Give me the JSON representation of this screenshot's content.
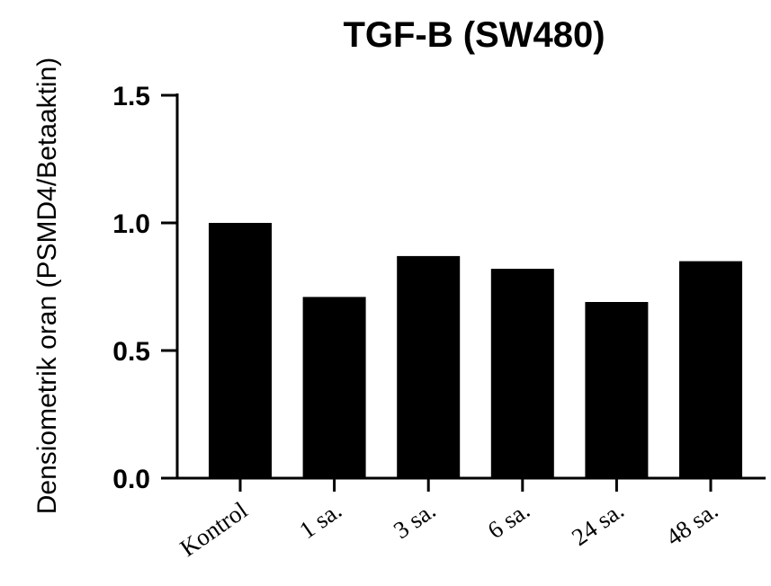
{
  "chart_data": {
    "type": "bar",
    "title": "TGF-B (SW480)",
    "xlabel": "",
    "ylabel": "Densiometrik oran (PSMD4/Betaaktin)",
    "categories": [
      "Kontrol",
      "1 sa.",
      "3 sa.",
      "6 sa.",
      "24 sa.",
      "48 sa."
    ],
    "values": [
      1.0,
      0.71,
      0.87,
      0.82,
      0.69,
      0.85
    ],
    "ylim": [
      0,
      1.5
    ],
    "yticks": [
      "0.0",
      "0.5",
      "1.0",
      "1.5"
    ],
    "bar_color": "#000000",
    "grid": false,
    "legend": "none"
  }
}
